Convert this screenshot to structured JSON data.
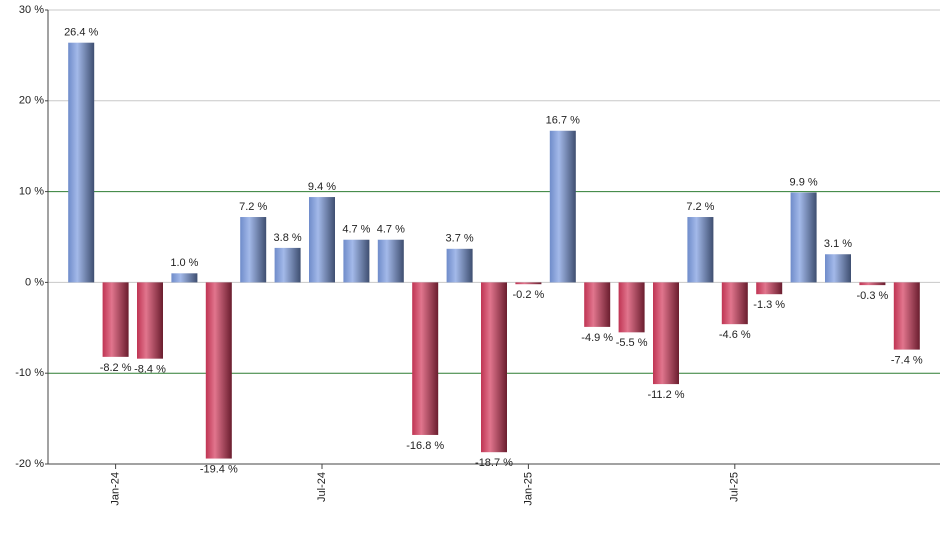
{
  "chart_data": {
    "type": "bar",
    "categories": [
      null,
      "Jan-24",
      null,
      null,
      null,
      null,
      null,
      "Jul-24",
      null,
      null,
      null,
      null,
      null,
      "Jan-25",
      null,
      null,
      null,
      null,
      null,
      "Jul-25",
      null,
      null,
      null,
      null,
      null
    ],
    "values": [
      26.4,
      -8.2,
      -8.4,
      1.0,
      -19.4,
      7.2,
      3.8,
      9.4,
      4.7,
      4.7,
      -16.8,
      3.7,
      -18.7,
      -0.2,
      16.7,
      -4.9,
      -5.5,
      -11.2,
      7.2,
      -4.6,
      -1.3,
      9.9,
      3.1,
      -0.3,
      -7.4
    ],
    "value_labels": [
      "26.4 %",
      "-8.2 %",
      "-8.4 %",
      "1.0 %",
      "-19.4 %",
      "7.2 %",
      "3.8 %",
      "9.4 %",
      "4.7 %",
      "4.7 %",
      "-16.8 %",
      "3.7 %",
      "-18.7 %",
      "-0.2 %",
      "16.7 %",
      "-4.9 %",
      "-5.5 %",
      "-11.2 %",
      "7.2 %",
      "-4.6 %",
      "-1.3 %",
      "9.9 %",
      "3.1 %",
      "-0.3 %",
      "-7.4 %"
    ],
    "positive_color": "#7b9be0",
    "negative_color": "#d43a5c",
    "ylim": [
      -20,
      30
    ],
    "yticks": [
      {
        "value": -20,
        "label": "-20 %"
      },
      {
        "value": -10,
        "label": "-10 %"
      },
      {
        "value": 0,
        "label": "0 %"
      },
      {
        "value": 10,
        "label": "10 %"
      },
      {
        "value": 20,
        "label": "20 %"
      },
      {
        "value": 30,
        "label": "30 %"
      }
    ],
    "grid": true,
    "grid_colors": [
      "#444444",
      "#2e7d32",
      "#c8c8c8",
      "#2e7d32",
      "#c8c8c8",
      "#c8c8c8"
    ]
  }
}
